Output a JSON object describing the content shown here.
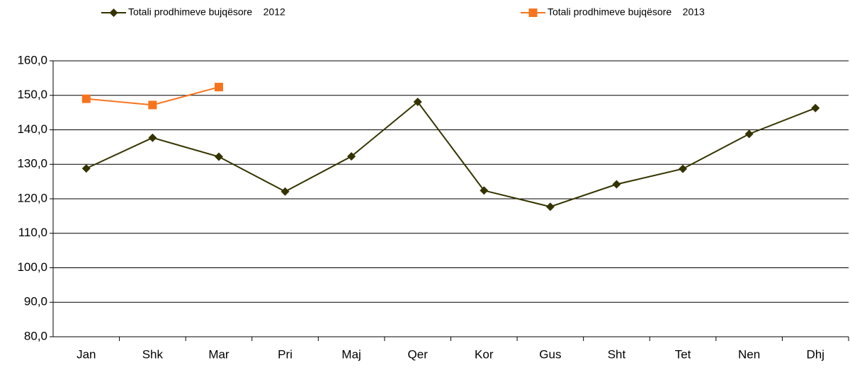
{
  "chart_data": {
    "type": "line",
    "categories": [
      "Jan",
      "Shk",
      "Mar",
      "Pri",
      "Maj",
      "Qer",
      "Kor",
      "Gus",
      "Sht",
      "Tet",
      "Nen",
      "Dhj"
    ],
    "series": [
      {
        "name": "Totali prodhimeve bujqësore    2012",
        "color": "#333300",
        "marker": "diamond",
        "values": [
          128.8,
          137.7,
          132.2,
          122.1,
          132.3,
          148.1,
          122.4,
          117.7,
          124.2,
          128.7,
          138.8,
          146.3
        ]
      },
      {
        "name": "Totali prodhimeve bujqësore    2013",
        "color": "#f7741e",
        "marker": "square",
        "values": [
          149.0,
          147.2,
          152.4,
          null,
          null,
          null,
          null,
          null,
          null,
          null,
          null,
          null
        ]
      }
    ],
    "ylim": [
      80,
      160
    ],
    "yticks": [
      {
        "value": 80,
        "label": "80,0"
      },
      {
        "value": 90,
        "label": "90,0"
      },
      {
        "value": 100,
        "label": "100,0"
      },
      {
        "value": 110,
        "label": "110,0"
      },
      {
        "value": 120,
        "label": "120,0"
      },
      {
        "value": 130,
        "label": "130,0"
      },
      {
        "value": 140,
        "label": "140,0"
      },
      {
        "value": 150,
        "label": "150,0"
      },
      {
        "value": 160,
        "label": "160,0"
      }
    ],
    "grid": true
  }
}
